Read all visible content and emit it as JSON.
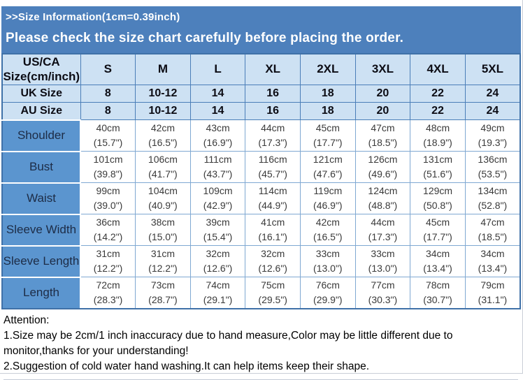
{
  "header": {
    "title": ">>Size Information(1cm=0.39inch)",
    "subtitle": "Please check the size chart carefully before placing the order."
  },
  "table": {
    "corner_header_line1": "US/CA",
    "corner_header_line2": "Size(cm/inch)",
    "size_columns": [
      "S",
      "M",
      "L",
      "XL",
      "2XL",
      "3XL",
      "4XL",
      "5XL"
    ],
    "conversion_rows": [
      {
        "label": "UK Size",
        "values": [
          "8",
          "10-12",
          "14",
          "16",
          "18",
          "20",
          "22",
          "24"
        ]
      },
      {
        "label": "AU Size",
        "values": [
          "8",
          "10-12",
          "14",
          "16",
          "18",
          "20",
          "22",
          "24"
        ]
      }
    ],
    "measurement_rows": [
      {
        "label": "Shoulder",
        "cm": [
          "40cm",
          "42cm",
          "43cm",
          "44cm",
          "45cm",
          "47cm",
          "48cm",
          "49cm"
        ],
        "inch": [
          "(15.7\")",
          "(16.5\")",
          "(16.9\")",
          "(17.3\")",
          "(17.7\")",
          "(18.5\")",
          "(18.9\")",
          "(19.3\")"
        ]
      },
      {
        "label": "Bust",
        "cm": [
          "101cm",
          "106cm",
          "111cm",
          "116cm",
          "121cm",
          "126cm",
          "131cm",
          "136cm"
        ],
        "inch": [
          "(39.8\")",
          "(41.7\")",
          "(43.7\")",
          "(45.7\")",
          "(47.6\")",
          "(49.6\")",
          "(51.6\")",
          "(53.5\")"
        ]
      },
      {
        "label": "Waist",
        "cm": [
          "99cm",
          "104cm",
          "109cm",
          "114cm",
          "119cm",
          "124cm",
          "129cm",
          "134cm"
        ],
        "inch": [
          "(39.0\")",
          "(40.9\")",
          "(42.9\")",
          "(44.9\")",
          "(46.9\")",
          "(48.8\")",
          "(50.8\")",
          "(52.8\")"
        ]
      },
      {
        "label": "Sleeve Width",
        "cm": [
          "36cm",
          "38cm",
          "39cm",
          "41cm",
          "42cm",
          "44cm",
          "45cm",
          "47cm"
        ],
        "inch": [
          "(14.2\")",
          "(15.0\")",
          "(15.4\")",
          "(16.1\")",
          "(16.5\")",
          "(17.3\")",
          "(17.7\")",
          "(18.5\")"
        ]
      },
      {
        "label": "Sleeve Length",
        "cm": [
          "31cm",
          "31cm",
          "32cm",
          "32cm",
          "33cm",
          "33cm",
          "34cm",
          "34cm"
        ],
        "inch": [
          "(12.2\")",
          "(12.2\")",
          "(12.6\")",
          "(12.6\")",
          "(13.0\")",
          "(13.0\")",
          "(13.4\")",
          "(13.4\")"
        ]
      },
      {
        "label": "Length",
        "cm": [
          "72cm",
          "73cm",
          "74cm",
          "75cm",
          "76cm",
          "77cm",
          "78cm",
          "79cm"
        ],
        "inch": [
          "(28.3\")",
          "(28.7\")",
          "(29.1\")",
          "(29.5\")",
          "(29.9\")",
          "(30.3\")",
          "(30.7\")",
          "(31.1\")"
        ]
      }
    ]
  },
  "notes": {
    "heading": "Attention:",
    "items": [
      "1.Size may be 2cm/1 inch inaccuracy due to hand measure,Color may be little different due to monitor,thanks for your understanding!",
      "2.Suggestion of cold water hand washing.It can help items keep their shape."
    ]
  },
  "colors": {
    "banner_blue": "#4d80bc",
    "header_light_blue": "#cde1f3",
    "row_label_blue": "#5b95cf",
    "data_grid_blue": "#7fa8d2",
    "header_grid_blue": "#4a7eb8",
    "table_outline_blue": "#3f71a8"
  }
}
